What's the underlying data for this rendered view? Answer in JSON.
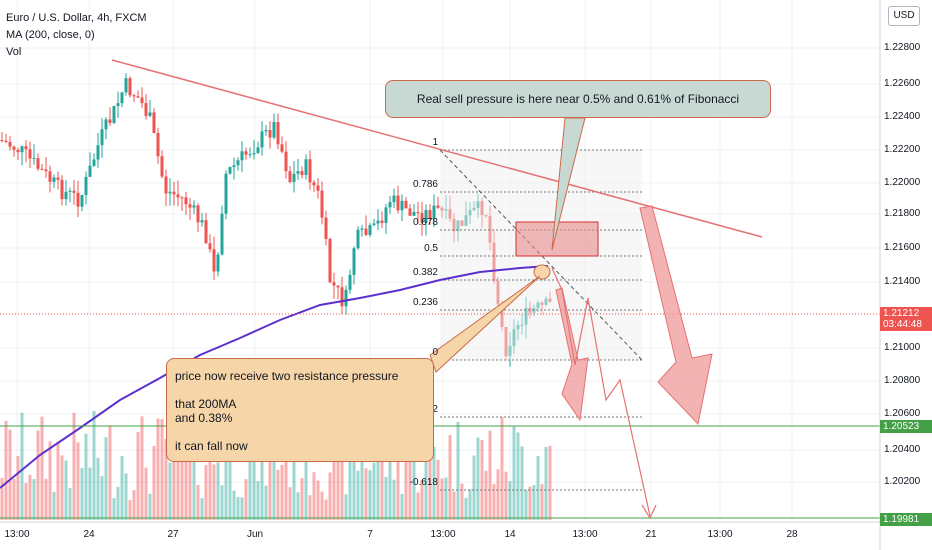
{
  "legend": {
    "symbol": "Euro / U.S. Dollar, 4h, FXCM",
    "ma": "MA (200, close, 0)",
    "vol": "Vol"
  },
  "currency_button": "USD",
  "price_axis": [
    "1.2280",
    "1.22800",
    "1.22600",
    "1.22400",
    "1.22200",
    "1.22000",
    "1.21800",
    "1.21600",
    "1.21400",
    "1.21000",
    "1.20800",
    "1.20600",
    "1.20400",
    "1.20200"
  ],
  "price_tags": {
    "last": "1.21212",
    "countdown": "03:44:48",
    "line_upper": "1.20523",
    "line_lower": "1.19981"
  },
  "time_axis": [
    "13:00",
    "24",
    "27",
    "Jun",
    "7",
    "13:00",
    "14",
    "13:00",
    "21",
    "13:00",
    "28"
  ],
  "fib_labels": [
    "1",
    "0.786",
    "0.678",
    "0.5",
    "0.382",
    "0.236",
    "0",
    "-0.272",
    "-0.618"
  ],
  "annotations": {
    "top_callout": "Real sell pressure is here near 0.5% and 0.61% of Fibonacci",
    "left_callout_line1": "price now receive two resistance pressure",
    "left_callout_line2": "that 200MA",
    "left_callout_line3": "and 0.38%",
    "left_callout_line4": "it can fall now"
  },
  "colors": {
    "up": "#26a69a",
    "down": "#ef5350",
    "ma": "#5c2fcf",
    "trendline": "#e57373",
    "hline": "#43a047",
    "last_price": "#ef5350"
  }
}
